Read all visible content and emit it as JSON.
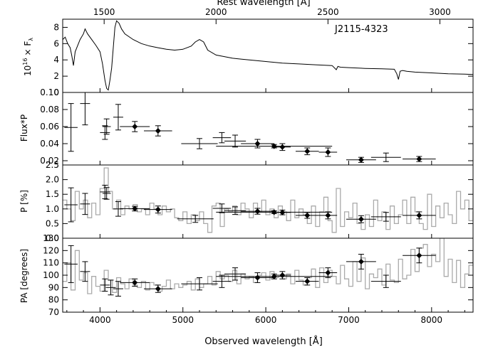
{
  "chart_data": {
    "type": "scatter",
    "object_label": "J2115-4323",
    "top_axis_label": "Rest wavelength [Å]",
    "top_ticks": [
      "1500",
      "2000",
      "2500",
      "3000"
    ],
    "xlabel": "Observed wavelength [Å]",
    "x_ticks": [
      "4000",
      "5000",
      "6000",
      "7000",
      "8000"
    ],
    "xlim": [
      3550,
      8500
    ],
    "panels": [
      {
        "name": "flux",
        "ylabel_parts": {
          "pre": "10",
          "sup": "16",
          "mid": "× F",
          "sub": "λ"
        },
        "ylim": [
          0,
          9
        ],
        "yticks": [
          "0",
          "2",
          "4",
          "6",
          "8"
        ],
        "spectrum": {
          "x": [
            3550,
            3580,
            3610,
            3640,
            3660,
            3680,
            3700,
            3720,
            3760,
            3800,
            3820,
            3850,
            3900,
            3950,
            4000,
            4030,
            4060,
            4080,
            4100,
            4120,
            4140,
            4160,
            4180,
            4200,
            4230,
            4260,
            4300,
            4400,
            4500,
            4600,
            4700,
            4800,
            4900,
            5000,
            5100,
            5150,
            5200,
            5250,
            5300,
            5400,
            5500,
            5600,
            5700,
            5800,
            6000,
            6200,
            6400,
            6600,
            6800,
            6850,
            6870,
            6900,
            7000,
            7200,
            7400,
            7550,
            7580,
            7600,
            7620,
            7650,
            7700,
            7800,
            8000,
            8200,
            8400,
            8500
          ],
          "y": [
            6.5,
            6.8,
            6.0,
            5.5,
            4.5,
            3.3,
            5.0,
            5.5,
            6.5,
            7.2,
            7.8,
            7.2,
            6.5,
            5.8,
            5.0,
            3.5,
            1.5,
            0.5,
            0.3,
            1.5,
            3.0,
            5.5,
            8.0,
            8.8,
            8.5,
            7.8,
            7.2,
            6.5,
            6.0,
            5.7,
            5.5,
            5.3,
            5.2,
            5.3,
            5.7,
            6.2,
            6.5,
            6.2,
            5.2,
            4.6,
            4.4,
            4.2,
            4.1,
            4.0,
            3.8,
            3.6,
            3.5,
            3.4,
            3.3,
            2.8,
            3.2,
            3.1,
            3.05,
            2.95,
            2.9,
            2.85,
            2.3,
            1.6,
            2.6,
            2.7,
            2.6,
            2.5,
            2.4,
            2.3,
            2.25,
            2.2
          ]
        }
      },
      {
        "name": "polarized_flux",
        "ylabel": "Flux*P",
        "ylim": [
          0.015,
          0.1
        ],
        "yticks": [
          "0.02",
          "0.04",
          "0.06",
          "0.08",
          "0.10"
        ],
        "points": [
          {
            "x": 3650,
            "y": 0.059,
            "xerr": 80,
            "yerr": 0.028,
            "filled": false
          },
          {
            "x": 3820,
            "y": 0.087,
            "xerr": 60,
            "yerr": 0.025,
            "filled": false
          },
          {
            "x": 4060,
            "y": 0.053,
            "xerr": 60,
            "yerr": 0.008,
            "filled": false
          },
          {
            "x": 4080,
            "y": 0.06,
            "xerr": 50,
            "yerr": 0.009,
            "filled": false
          },
          {
            "x": 4220,
            "y": 0.071,
            "xerr": 60,
            "yerr": 0.015,
            "filled": false
          },
          {
            "x": 4420,
            "y": 0.06,
            "xerr": 180,
            "yerr": 0.006,
            "filled": true
          },
          {
            "x": 4700,
            "y": 0.055,
            "xerr": 170,
            "yerr": 0.006,
            "filled": true
          },
          {
            "x": 5200,
            "y": 0.04,
            "xerr": 220,
            "yerr": 0.006,
            "filled": false
          },
          {
            "x": 5470,
            "y": 0.047,
            "xerr": 110,
            "yerr": 0.006,
            "filled": false
          },
          {
            "x": 5630,
            "y": 0.043,
            "xerr": 130,
            "yerr": 0.007,
            "filled": false
          },
          {
            "x": 5900,
            "y": 0.04,
            "xerr": 200,
            "yerr": 0.005,
            "filled": true
          },
          {
            "x": 6100,
            "y": 0.037,
            "xerr": 700,
            "yerr": 0.002,
            "filled": true
          },
          {
            "x": 6200,
            "y": 0.036,
            "xerr": 100,
            "yerr": 0.004,
            "filled": true
          },
          {
            "x": 6500,
            "y": 0.031,
            "xerr": 140,
            "yerr": 0.004,
            "filled": true
          },
          {
            "x": 6750,
            "y": 0.03,
            "xerr": 110,
            "yerr": 0.005,
            "filled": true
          },
          {
            "x": 7150,
            "y": 0.021,
            "xerr": 180,
            "yerr": 0.003,
            "filled": true
          },
          {
            "x": 7450,
            "y": 0.024,
            "xerr": 180,
            "yerr": 0.005,
            "filled": false
          },
          {
            "x": 7850,
            "y": 0.022,
            "xerr": 200,
            "yerr": 0.003,
            "filled": true
          }
        ]
      },
      {
        "name": "polarization",
        "ylabel": "P [%]",
        "ylim": [
          0,
          2.5
        ],
        "yticks": [
          "0.0",
          "0.5",
          "1.0",
          "1.5",
          "2.0",
          "2.5"
        ],
        "points": [
          {
            "x": 3650,
            "y": 1.14,
            "xerr": 80,
            "yerr": 0.58,
            "filled": false
          },
          {
            "x": 3820,
            "y": 1.17,
            "xerr": 60,
            "yerr": 0.36,
            "filled": false
          },
          {
            "x": 4060,
            "y": 1.58,
            "xerr": 60,
            "yerr": 0.23,
            "filled": false
          },
          {
            "x": 4080,
            "y": 1.53,
            "xerr": 50,
            "yerr": 0.2,
            "filled": false
          },
          {
            "x": 4220,
            "y": 1.0,
            "xerr": 60,
            "yerr": 0.25,
            "filled": false
          },
          {
            "x": 4420,
            "y": 1.01,
            "xerr": 180,
            "yerr": 0.08,
            "filled": true
          },
          {
            "x": 4700,
            "y": 0.98,
            "xerr": 170,
            "yerr": 0.12,
            "filled": true
          },
          {
            "x": 5150,
            "y": 0.66,
            "xerr": 220,
            "yerr": 0.12,
            "filled": false
          },
          {
            "x": 5470,
            "y": 1.02,
            "xerr": 110,
            "yerr": 0.15,
            "filled": false
          },
          {
            "x": 5630,
            "y": 0.94,
            "xerr": 130,
            "yerr": 0.13,
            "filled": false
          },
          {
            "x": 5900,
            "y": 0.92,
            "xerr": 200,
            "yerr": 0.1,
            "filled": true
          },
          {
            "x": 6100,
            "y": 0.89,
            "xerr": 700,
            "yerr": 0.05,
            "filled": true
          },
          {
            "x": 6200,
            "y": 0.88,
            "xerr": 100,
            "yerr": 0.08,
            "filled": true
          },
          {
            "x": 6500,
            "y": 0.78,
            "xerr": 140,
            "yerr": 0.1,
            "filled": true
          },
          {
            "x": 6750,
            "y": 0.78,
            "xerr": 110,
            "yerr": 0.12,
            "filled": true
          },
          {
            "x": 7150,
            "y": 0.65,
            "xerr": 180,
            "yerr": 0.12,
            "filled": true
          },
          {
            "x": 7450,
            "y": 0.73,
            "xerr": 180,
            "yerr": 0.15,
            "filled": false
          },
          {
            "x": 7850,
            "y": 0.78,
            "xerr": 200,
            "yerr": 0.12,
            "filled": true
          }
        ],
        "background": {
          "x": [
            3550,
            3600,
            3650,
            3700,
            3750,
            3800,
            3850,
            3900,
            3950,
            4000,
            4050,
            4100,
            4150,
            4200,
            4250,
            4300,
            4350,
            4400,
            4450,
            4500,
            4550,
            4600,
            4650,
            4700,
            4750,
            4800,
            4850,
            4900,
            4950,
            5000,
            5050,
            5100,
            5150,
            5200,
            5250,
            5300,
            5350,
            5400,
            5450,
            5500,
            5550,
            5600,
            5650,
            5700,
            5750,
            5800,
            5850,
            5900,
            5950,
            6000,
            6050,
            6100,
            6150,
            6200,
            6250,
            6300,
            6350,
            6400,
            6450,
            6500,
            6550,
            6600,
            6650,
            6700,
            6750,
            6800,
            6850,
            6900,
            6950,
            7000,
            7050,
            7100,
            7150,
            7200,
            7250,
            7300,
            7350,
            7400,
            7450,
            7500,
            7550,
            7600,
            7650,
            7700,
            7750,
            7800,
            7850,
            7900,
            7950,
            8000,
            8050,
            8100,
            8150,
            8200,
            8250,
            8300,
            8350,
            8400,
            8450,
            8500
          ],
          "y": [
            1.3,
            1.0,
            0.6,
            1.6,
            1.0,
            1.3,
            0.7,
            1.2,
            0.8,
            1.7,
            2.4,
            1.6,
            1.0,
            1.3,
            0.8,
            1.1,
            1.0,
            1.15,
            0.9,
            1.0,
            0.8,
            1.2,
            1.0,
            0.8,
            1.1,
            0.9,
            1.0,
            0.7,
            0.6,
            0.9,
            0.5,
            0.8,
            0.6,
            0.9,
            0.5,
            0.2,
            1.1,
            1.2,
            0.4,
            1.0,
            0.9,
            1.1,
            0.8,
            1.2,
            1.0,
            0.7,
            1.2,
            0.9,
            1.3,
            0.8,
            1.0,
            0.7,
            1.1,
            0.9,
            0.6,
            1.3,
            0.7,
            1.0,
            0.8,
            0.5,
            1.1,
            0.4,
            0.9,
            1.4,
            0.6,
            0.2,
            1.7,
            0.4,
            0.9,
            0.7,
            1.2,
            0.5,
            0.3,
            0.8,
            0.4,
            1.3,
            0.6,
            0.9,
            0.3,
            1.1,
            0.5,
            0.8,
            1.3,
            0.5,
            1.4,
            0.9,
            0.5,
            0.3,
            1.5,
            0.4,
            1.1,
            0.7,
            1.2,
            0.8,
            0.5,
            1.6,
            1.0,
            1.3,
            0.6,
            0.9
          ]
        }
      },
      {
        "name": "position_angle",
        "ylabel": "PA [degrees]",
        "ylim": [
          70,
          130
        ],
        "yticks": [
          "70",
          "80",
          "90",
          "100",
          "110",
          "120",
          "130"
        ],
        "points": [
          {
            "x": 3650,
            "y": 109,
            "xerr": 80,
            "yerr": 15,
            "filled": false
          },
          {
            "x": 3820,
            "y": 103,
            "xerr": 60,
            "yerr": 8,
            "filled": false
          },
          {
            "x": 4060,
            "y": 92,
            "xerr": 60,
            "yerr": 5,
            "filled": false
          },
          {
            "x": 4130,
            "y": 90,
            "xerr": 60,
            "yerr": 6,
            "filled": false
          },
          {
            "x": 4220,
            "y": 89,
            "xerr": 60,
            "yerr": 6,
            "filled": false
          },
          {
            "x": 4420,
            "y": 94,
            "xerr": 180,
            "yerr": 3,
            "filled": true
          },
          {
            "x": 4700,
            "y": 89,
            "xerr": 170,
            "yerr": 3,
            "filled": true
          },
          {
            "x": 5200,
            "y": 93,
            "xerr": 220,
            "yerr": 5,
            "filled": false
          },
          {
            "x": 5470,
            "y": 95,
            "xerr": 110,
            "yerr": 5,
            "filled": false
          },
          {
            "x": 5630,
            "y": 101,
            "xerr": 130,
            "yerr": 5,
            "filled": false
          },
          {
            "x": 5900,
            "y": 98,
            "xerr": 200,
            "yerr": 4,
            "filled": true
          },
          {
            "x": 6100,
            "y": 99,
            "xerr": 700,
            "yerr": 2,
            "filled": true
          },
          {
            "x": 6200,
            "y": 100,
            "xerr": 100,
            "yerr": 3,
            "filled": true
          },
          {
            "x": 6500,
            "y": 95,
            "xerr": 140,
            "yerr": 3,
            "filled": true
          },
          {
            "x": 6750,
            "y": 102,
            "xerr": 110,
            "yerr": 4,
            "filled": true
          },
          {
            "x": 7150,
            "y": 111,
            "xerr": 180,
            "yerr": 6,
            "filled": true
          },
          {
            "x": 7450,
            "y": 95,
            "xerr": 180,
            "yerr": 5,
            "filled": false
          },
          {
            "x": 7850,
            "y": 116,
            "xerr": 200,
            "yerr": 6,
            "filled": true
          }
        ],
        "background": {
          "x": [
            3550,
            3600,
            3650,
            3700,
            3750,
            3800,
            3850,
            3900,
            3950,
            4000,
            4050,
            4100,
            4150,
            4200,
            4250,
            4300,
            4350,
            4400,
            4450,
            4500,
            4550,
            4600,
            4650,
            4700,
            4750,
            4800,
            4850,
            4900,
            4950,
            5000,
            5050,
            5100,
            5150,
            5200,
            5250,
            5300,
            5350,
            5400,
            5450,
            5500,
            5550,
            5600,
            5650,
            5700,
            5750,
            5800,
            5850,
            5900,
            5950,
            6000,
            6050,
            6100,
            6150,
            6200,
            6250,
            6300,
            6350,
            6400,
            6450,
            6500,
            6550,
            6600,
            6650,
            6700,
            6750,
            6800,
            6850,
            6900,
            6950,
            7000,
            7050,
            7100,
            7150,
            7200,
            7250,
            7300,
            7350,
            7400,
            7450,
            7500,
            7550,
            7600,
            7650,
            7700,
            7750,
            7800,
            7850,
            7900,
            7950,
            8000,
            8050,
            8100,
            8150,
            8200,
            8250,
            8300,
            8350,
            8400,
            8450,
            8500
          ],
          "y": [
            95,
            110,
            88,
            120,
            96,
            102,
            85,
            99,
            91,
            87,
            104,
            96,
            86,
            98,
            93,
            89,
            97,
            92,
            90,
            95,
            88,
            94,
            92,
            87,
            91,
            96,
            89,
            93,
            90,
            92,
            95,
            88,
            97,
            90,
            93,
            99,
            92,
            103,
            97,
            100,
            95,
            104,
            93,
            101,
            97,
            99,
            94,
            100,
            102,
            96,
            103,
            98,
            99,
            97,
            101,
            93,
            104,
            96,
            92,
            98,
            105,
            90,
            106,
            94,
            104,
            99,
            93,
            108,
            97,
            91,
            111,
            95,
            114,
            89,
            101,
            98,
            105,
            92,
            109,
            96,
            94,
            113,
            97,
            100,
            121,
            103,
            122,
            125,
            107,
            117,
            111,
            130,
            99,
            113,
            94,
            112,
            90,
            101,
            108,
            118
          ]
        }
      }
    ]
  }
}
